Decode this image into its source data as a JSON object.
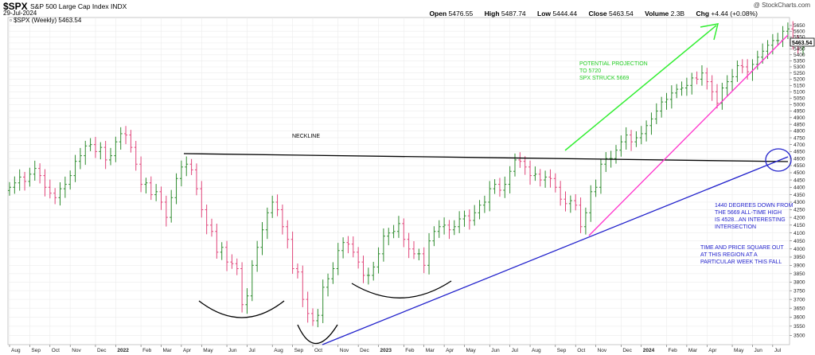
{
  "header": {
    "symbol": "$SPX",
    "name": "S&P 500 Large Cap Index",
    "exchange": "INDX",
    "date": "29-Jul-2024",
    "legend": "$SPX (Weekly) 5463.54",
    "copyright": "@ StockCharts.com",
    "ohlc": {
      "open_label": "Open",
      "open": "5476.55",
      "high_label": "High",
      "high": "5487.74",
      "low_label": "Low",
      "low": "5444.44",
      "close_label": "Close",
      "close": "5463.54",
      "volume_label": "Volume",
      "volume": "2.3B",
      "chg_label": "Chg",
      "chg": "+4.44 (+0.08%)"
    }
  },
  "last_price_label": "5463.54",
  "annotations": {
    "neckline": "NECKLINE",
    "projection": [
      "POTENTIAL PROJECTION",
      "TO 5720",
      "SPX STRUCK 5669"
    ],
    "degrees": [
      "1440 DEGREES DOWN FROM",
      "THE 5669 ALL-TIME HIGH",
      "IS 4528...AN INTERESTING",
      "INTERSECTION"
    ],
    "square": [
      "TIME AND PRICE SQUARE OUT",
      "AT THIS REGION AT A",
      "PARTICULAR WEEK THIS FALL"
    ]
  },
  "colors": {
    "up_bar": "#2e8b2e",
    "down_bar": "#e0457a",
    "neckline": "#000000",
    "blue_trendline": "#2222cc",
    "magenta_trendline": "#ff33cc",
    "projection_arrow": "#33ee33",
    "annotation_green": "#22cc22",
    "annotation_blue": "#2222cc"
  },
  "chart_data": {
    "type": "ohlc",
    "title": "$SPX S&P 500 Large Cap Index",
    "ylim": [
      3450,
      5720
    ],
    "y_scale": "log",
    "y_ticks": [
      3500,
      3550,
      3600,
      3650,
      3700,
      3750,
      3800,
      3850,
      3900,
      3950,
      4000,
      4050,
      4100,
      4150,
      4200,
      4250,
      4300,
      4350,
      4400,
      4450,
      4500,
      4550,
      4600,
      4650,
      4700,
      4750,
      4800,
      4850,
      4900,
      4950,
      5000,
      5050,
      5100,
      5150,
      5200,
      5250,
      5300,
      5350,
      5400,
      5450,
      5500,
      5550,
      5600,
      5650
    ],
    "x_ticks": [
      {
        "label": "Aug",
        "week": 0
      },
      {
        "label": "Sep",
        "week": 4
      },
      {
        "label": "Oct",
        "week": 8
      },
      {
        "label": "Nov",
        "week": 12
      },
      {
        "label": "Dec",
        "week": 17
      },
      {
        "label": "2022",
        "week": 21,
        "bold": true
      },
      {
        "label": "Feb",
        "week": 26
      },
      {
        "label": "Mar",
        "week": 30
      },
      {
        "label": "Apr",
        "week": 34
      },
      {
        "label": "May",
        "week": 38
      },
      {
        "label": "Jun",
        "week": 43
      },
      {
        "label": "Jul",
        "week": 47
      },
      {
        "label": "Aug",
        "week": 52
      },
      {
        "label": "Sep",
        "week": 56
      },
      {
        "label": "Oct",
        "week": 60
      },
      {
        "label": "Nov",
        "week": 65
      },
      {
        "label": "Dec",
        "week": 69
      },
      {
        "label": "2023",
        "week": 73,
        "bold": true
      },
      {
        "label": "Feb",
        "week": 78
      },
      {
        "label": "Mar",
        "week": 82
      },
      {
        "label": "Apr",
        "week": 86
      },
      {
        "label": "May",
        "week": 90
      },
      {
        "label": "Jun",
        "week": 95
      },
      {
        "label": "Jul",
        "week": 99
      },
      {
        "label": "Aug",
        "week": 103
      },
      {
        "label": "Sep",
        "week": 108
      },
      {
        "label": "Oct",
        "week": 112
      },
      {
        "label": "Nov",
        "week": 116
      },
      {
        "label": "Dec",
        "week": 121
      },
      {
        "label": "2024",
        "week": 125,
        "bold": true
      },
      {
        "label": "Feb",
        "week": 130
      },
      {
        "label": "Mar",
        "week": 134
      },
      {
        "label": "Apr",
        "week": 138
      },
      {
        "label": "May",
        "week": 143
      },
      {
        "label": "Jun",
        "week": 147
      },
      {
        "label": "Jul",
        "week": 151
      }
    ],
    "weekly_close": [
      4400,
      4430,
      4470,
      4440,
      4490,
      4530,
      4480,
      4400,
      4360,
      4330,
      4390,
      4420,
      4480,
      4580,
      4620,
      4690,
      4700,
      4650,
      4680,
      4590,
      4620,
      4720,
      4780,
      4770,
      4680,
      4560,
      4420,
      4430,
      4350,
      4370,
      4300,
      4200,
      4330,
      4460,
      4540,
      4560,
      4520,
      4390,
      4250,
      4150,
      4110,
      3980,
      4010,
      3920,
      3910,
      3880,
      3670,
      3720,
      3900,
      4010,
      4120,
      4230,
      4300,
      4250,
      4140,
      4060,
      3880,
      3860,
      3700,
      3620,
      3580,
      3610,
      3770,
      3820,
      3880,
      3990,
      4040,
      4030,
      3980,
      3920,
      3840,
      3840,
      3890,
      3970,
      4080,
      4100,
      4110,
      4160,
      4060,
      4000,
      3970,
      3970,
      3900,
      4050,
      4110,
      4140,
      4150,
      4120,
      4140,
      4190,
      4210,
      4180,
      4230,
      4280,
      4300,
      4390,
      4420,
      4380,
      4420,
      4510,
      4590,
      4580,
      4540,
      4480,
      4490,
      4450,
      4470,
      4460,
      4400,
      4320,
      4290,
      4310,
      4280,
      4140,
      4230,
      4370,
      4400,
      4560,
      4600,
      4600,
      4660,
      4720,
      4770,
      4720,
      4750,
      4780,
      4840,
      4890,
      4950,
      5020,
      5040,
      5090,
      5120,
      5130,
      5150,
      5210,
      5200,
      5250,
      5180,
      5100,
      5010,
      5130,
      5180,
      5220,
      5310,
      5300,
      5260,
      5320,
      5380,
      5430,
      5480,
      5520,
      5520,
      5600,
      5620,
      5520,
      5450,
      5463
    ]
  }
}
